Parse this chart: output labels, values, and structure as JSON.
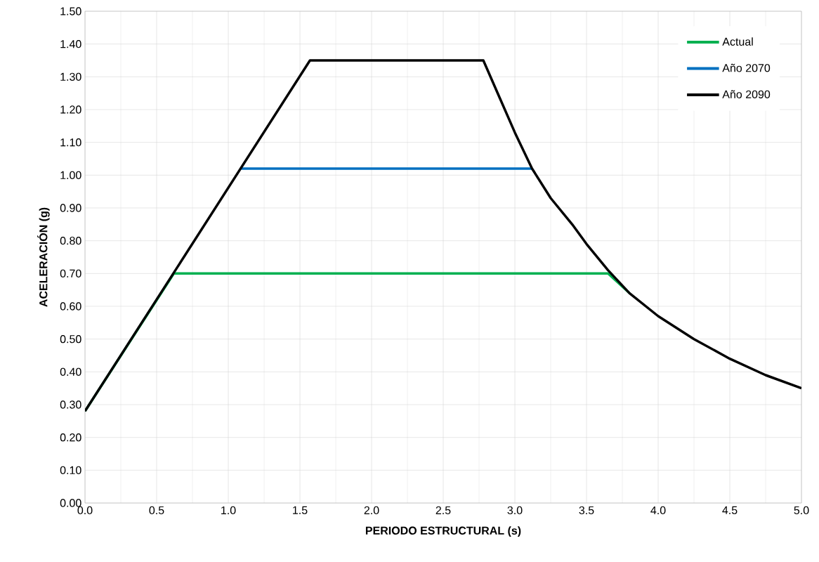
{
  "chart_data": {
    "type": "line",
    "xlabel": "PERIODO ESTRUCTURAL (s)",
    "ylabel": "ACELERACIÓN  (g)",
    "xlim": [
      0,
      5
    ],
    "ylim": [
      0,
      1.5
    ],
    "xticks": [
      {
        "value": 0,
        "label": "0.0"
      },
      {
        "value": 0.5,
        "label": "0.5"
      },
      {
        "value": 1,
        "label": "1.0"
      },
      {
        "value": 1.5,
        "label": "1.5"
      },
      {
        "value": 2,
        "label": "2.0"
      },
      {
        "value": 2.5,
        "label": "2.5"
      },
      {
        "value": 3,
        "label": "3.0"
      },
      {
        "value": 3.5,
        "label": "3.5"
      },
      {
        "value": 4,
        "label": "4.0"
      },
      {
        "value": 4.5,
        "label": "4.5"
      },
      {
        "value": 5,
        "label": "5.0"
      }
    ],
    "yticks": [
      {
        "value": 0,
        "label": "0.00"
      },
      {
        "value": 0.1,
        "label": "0.10"
      },
      {
        "value": 0.2,
        "label": "0.20"
      },
      {
        "value": 0.3,
        "label": "0.30"
      },
      {
        "value": 0.4,
        "label": "0.40"
      },
      {
        "value": 0.5,
        "label": "0.50"
      },
      {
        "value": 0.6,
        "label": "0.60"
      },
      {
        "value": 0.7,
        "label": "0.70"
      },
      {
        "value": 0.8,
        "label": "0.80"
      },
      {
        "value": 0.9,
        "label": "0.90"
      },
      {
        "value": 1.0,
        "label": "1.00"
      },
      {
        "value": 1.1,
        "label": "1.10"
      },
      {
        "value": 1.2,
        "label": "1.20"
      },
      {
        "value": 1.3,
        "label": "1.30"
      },
      {
        "value": 1.4,
        "label": "1.40"
      },
      {
        "value": 1.5,
        "label": "1.50"
      }
    ],
    "grid": true,
    "legend": "top right",
    "series": [
      {
        "name": "Actual",
        "color": "#00b050",
        "x": [
          0,
          0.62,
          3.65,
          3.8
        ],
        "values": [
          0.28,
          0.7,
          0.7,
          0.64
        ]
      },
      {
        "name": "Año 2070",
        "color": "#0070c0",
        "x": [
          1.09,
          3.12
        ],
        "values": [
          1.02,
          1.02
        ]
      },
      {
        "name": "Año 2090",
        "color": "#000000",
        "x": [
          0,
          1.57,
          2.78,
          2.9,
          3.0,
          3.12,
          3.25,
          3.4,
          3.5,
          3.65,
          3.8,
          4.0,
          4.25,
          4.5,
          4.75,
          5.0
        ],
        "values": [
          0.28,
          1.35,
          1.35,
          1.23,
          1.13,
          1.02,
          0.93,
          0.85,
          0.79,
          0.71,
          0.64,
          0.57,
          0.5,
          0.44,
          0.39,
          0.35
        ]
      }
    ]
  }
}
